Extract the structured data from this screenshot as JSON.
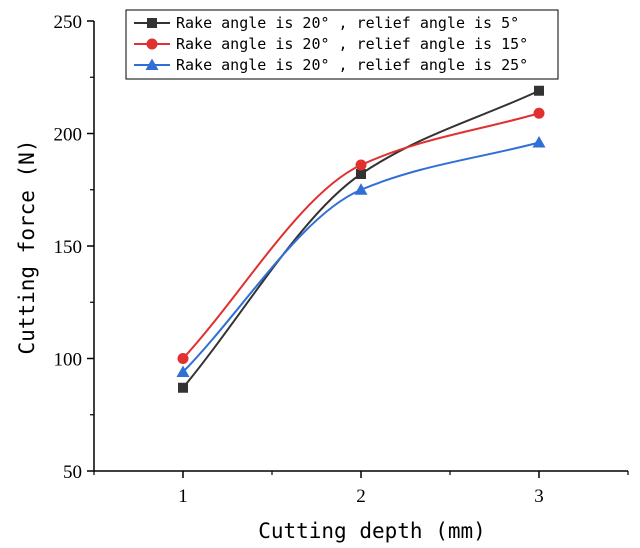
{
  "chart_data": {
    "type": "line",
    "title": "",
    "xlabel": "Cutting depth (mm)",
    "ylabel": "Cutting force (N)",
    "x": [
      1,
      2,
      3
    ],
    "xlim": [
      0.5,
      3.5
    ],
    "ylim": [
      50,
      250
    ],
    "xticks": [
      1,
      2,
      3
    ],
    "yticks": [
      50,
      100,
      150,
      200,
      250
    ],
    "grid": false,
    "legend_position": "top-left",
    "series": [
      {
        "name": "Rake angle is 20° , relief angle is 5°",
        "values": [
          87,
          182,
          219
        ],
        "color": "#333333",
        "marker": "square"
      },
      {
        "name": "Rake angle is 20° , relief angle is 15°",
        "values": [
          100,
          186,
          209
        ],
        "color": "#e03030",
        "marker": "circle"
      },
      {
        "name": "Rake angle is 20° , relief angle is 25°",
        "values": [
          94,
          175,
          196
        ],
        "color": "#2f6fd6",
        "marker": "triangle"
      }
    ]
  }
}
